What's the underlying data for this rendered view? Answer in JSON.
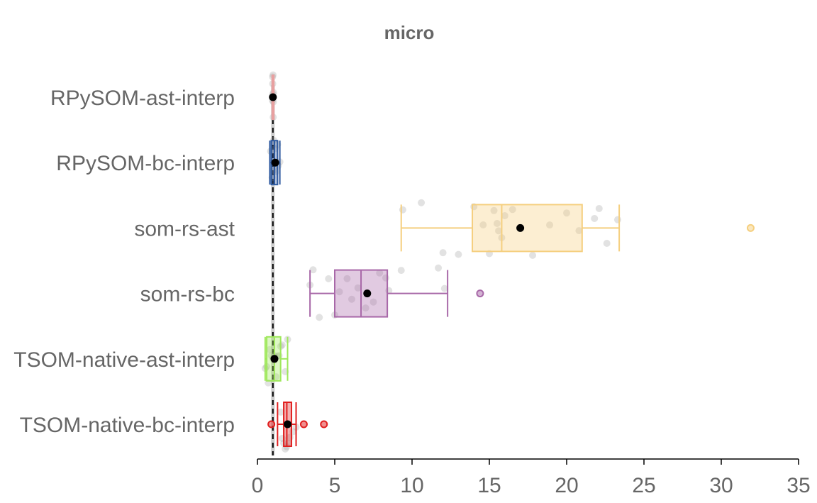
{
  "chart_data": {
    "type": "boxplot",
    "title": "micro",
    "xlabel": "",
    "ylabel": "",
    "xlim": [
      0,
      35
    ],
    "xticks": [
      0,
      5,
      10,
      15,
      20,
      25,
      30,
      35
    ],
    "reference_line": 1,
    "grid": false,
    "categories": [
      "RPySOM-ast-interp",
      "RPySOM-bc-interp",
      "som-rs-ast",
      "som-rs-bc",
      "TSOM-native-ast-interp",
      "TSOM-native-bc-interp"
    ],
    "series": [
      {
        "category": "RPySOM-ast-interp",
        "color": "#e8a0a0",
        "whisker_low": 0.95,
        "q1": 0.97,
        "median": 1.0,
        "q3": 1.02,
        "whisker_high": 1.05,
        "mean": 1.0,
        "outliers": [],
        "points": [
          0.96,
          0.97,
          0.98,
          0.99,
          1.0,
          1.0,
          1.01,
          1.02,
          1.03,
          1.04
        ]
      },
      {
        "category": "RPySOM-bc-interp",
        "color": "#2e5aa0",
        "whisker_low": 0.8,
        "q1": 0.9,
        "median": 1.1,
        "q3": 1.3,
        "whisker_high": 1.45,
        "mean": 1.15,
        "outliers": [],
        "points": [
          0.85,
          0.95,
          1.0,
          1.05,
          1.1,
          1.15,
          1.2,
          1.3,
          1.35,
          1.45
        ]
      },
      {
        "category": "som-rs-ast",
        "color": "#f5cf7f",
        "whisker_low": 9.3,
        "q1": 13.9,
        "median": 15.8,
        "q3": 21.0,
        "whisker_high": 23.4,
        "mean": 17.0,
        "outliers": [
          31.9
        ],
        "points": [
          9.4,
          10.6,
          12.0,
          13.0,
          14.0,
          14.6,
          15.0,
          15.3,
          15.5,
          15.6,
          15.8,
          16.0,
          16.5,
          17.8,
          18.9,
          20.0,
          20.8,
          21.8,
          22.1,
          22.6,
          23.3
        ]
      },
      {
        "category": "som-rs-bc",
        "color": "#a868a8",
        "whisker_low": 3.4,
        "q1": 5.0,
        "median": 6.7,
        "q3": 8.4,
        "whisker_high": 12.3,
        "mean": 7.1,
        "outliers": [
          14.4
        ],
        "points": [
          3.4,
          3.6,
          4.0,
          4.6,
          5.0,
          5.3,
          5.8,
          6.1,
          6.5,
          7.0,
          7.5,
          7.9,
          8.3,
          8.5,
          9.3,
          11.7,
          12.1
        ]
      },
      {
        "category": "TSOM-native-ast-interp",
        "color": "#9ee85a",
        "whisker_low": 0.5,
        "q1": 0.6,
        "median": 1.1,
        "q3": 1.5,
        "whisker_high": 1.95,
        "mean": 1.1,
        "outliers": [],
        "points": [
          0.5,
          0.6,
          0.7,
          0.8,
          0.9,
          1.0,
          1.1,
          1.2,
          1.3,
          1.4,
          1.5,
          1.6,
          1.8,
          1.95
        ]
      },
      {
        "category": "TSOM-native-bc-interp",
        "color": "#e02020",
        "whisker_low": 1.3,
        "q1": 1.7,
        "median": 1.9,
        "q3": 2.2,
        "whisker_high": 2.5,
        "mean": 1.95,
        "outliers": [
          0.9,
          3.0,
          4.3
        ],
        "points": [
          1.5,
          1.6,
          1.7,
          1.8,
          1.9,
          2.0,
          2.1,
          2.3,
          2.5
        ]
      }
    ]
  }
}
